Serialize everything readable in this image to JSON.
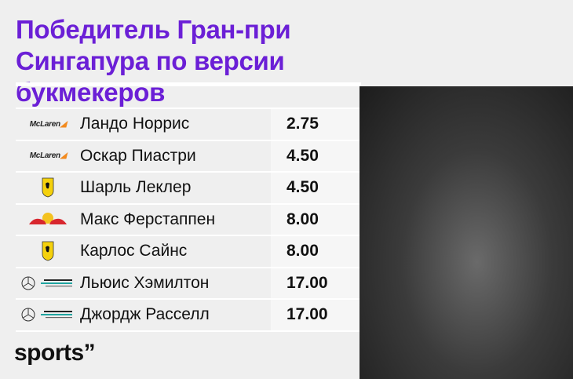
{
  "title": "Победитель Гран-при Сингапура по версии букмекеров",
  "rows": [
    {
      "team": "McLaren",
      "logo_icon": "mclaren-logo",
      "driver": "Ландо Норрис",
      "odds": "2.75"
    },
    {
      "team": "McLaren",
      "logo_icon": "mclaren-logo",
      "driver": "Оскар Пиастри",
      "odds": "4.50"
    },
    {
      "team": "Ferrari",
      "logo_icon": "ferrari-logo",
      "driver": "Шарль Леклер",
      "odds": "4.50"
    },
    {
      "team": "Red Bull",
      "logo_icon": "red-bull-logo",
      "driver": "Макс Ферстаппен",
      "odds": "8.00"
    },
    {
      "team": "Ferrari",
      "logo_icon": "ferrari-logo",
      "driver": "Карлос Сайнс",
      "odds": "8.00"
    },
    {
      "team": "Mercedes-AMG Petronas",
      "logo_icon": "mercedes-logo",
      "driver": "Льюис Хэмилтон",
      "odds": "17.00"
    },
    {
      "team": "Mercedes-AMG Petronas",
      "logo_icon": "mercedes-logo",
      "driver": "Джордж Расселл",
      "odds": "17.00"
    }
  ],
  "brand": "sports”",
  "colors": {
    "title": "#6b1fd6",
    "background": "#efefef"
  }
}
